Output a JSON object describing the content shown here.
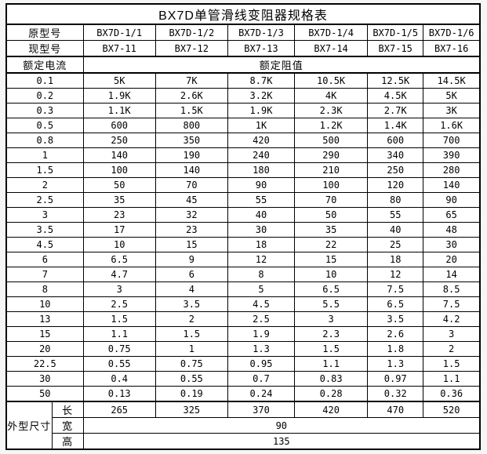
{
  "title": "BX7D单管滑线变阻器规格表",
  "header": {
    "old_model_label": "原型号",
    "new_model_label": "现型号",
    "current_label": "额定电流",
    "resistance_label": "额定阻值",
    "old_models": [
      "BX7D-1/1",
      "BX7D-1/2",
      "BX7D-1/3",
      "BX7D-1/4",
      "BX7D-1/5",
      "BX7D-1/6"
    ],
    "new_models": [
      "BX7-11",
      "BX7-12",
      "BX7-13",
      "BX7-14",
      "BX7-15",
      "BX7-16"
    ]
  },
  "rows": [
    {
      "current": "0.1",
      "values": [
        "5K",
        "7K",
        "8.7K",
        "10.5K",
        "12.5K",
        "14.5K"
      ]
    },
    {
      "current": "0.2",
      "values": [
        "1.9K",
        "2.6K",
        "3.2K",
        "4K",
        "4.5K",
        "5K"
      ]
    },
    {
      "current": "0.3",
      "values": [
        "1.1K",
        "1.5K",
        "1.9K",
        "2.3K",
        "2.7K",
        "3K"
      ]
    },
    {
      "current": "0.5",
      "values": [
        "600",
        "800",
        "1K",
        "1.2K",
        "1.4K",
        "1.6K"
      ]
    },
    {
      "current": "0.8",
      "values": [
        "250",
        "350",
        "420",
        "500",
        "600",
        "700"
      ]
    },
    {
      "current": "1",
      "values": [
        "140",
        "190",
        "240",
        "290",
        "340",
        "390"
      ]
    },
    {
      "current": "1.5",
      "values": [
        "100",
        "140",
        "180",
        "210",
        "250",
        "280"
      ]
    },
    {
      "current": "2",
      "values": [
        "50",
        "70",
        "90",
        "100",
        "120",
        "140"
      ]
    },
    {
      "current": "2.5",
      "values": [
        "35",
        "45",
        "55",
        "70",
        "80",
        "90"
      ]
    },
    {
      "current": "3",
      "values": [
        "23",
        "32",
        "40",
        "50",
        "55",
        "65"
      ]
    },
    {
      "current": "3.5",
      "values": [
        "17",
        "23",
        "30",
        "35",
        "40",
        "48"
      ]
    },
    {
      "current": "4.5",
      "values": [
        "10",
        "15",
        "18",
        "22",
        "25",
        "30"
      ]
    },
    {
      "current": "6",
      "values": [
        "6.5",
        "9",
        "12",
        "15",
        "18",
        "20"
      ]
    },
    {
      "current": "7",
      "values": [
        "4.7",
        "6",
        "8",
        "10",
        "12",
        "14"
      ]
    },
    {
      "current": "8",
      "values": [
        "3",
        "4",
        "5",
        "6.5",
        "7.5",
        "8.5"
      ]
    },
    {
      "current": "10",
      "values": [
        "2.5",
        "3.5",
        "4.5",
        "5.5",
        "6.5",
        "7.5"
      ]
    },
    {
      "current": "13",
      "values": [
        "1.5",
        "2",
        "2.5",
        "3",
        "3.5",
        "4.2"
      ]
    },
    {
      "current": "15",
      "values": [
        "1.1",
        "1.5",
        "1.9",
        "2.3",
        "2.6",
        "3"
      ]
    },
    {
      "current": "20",
      "values": [
        "0.75",
        "1",
        "1.3",
        "1.5",
        "1.8",
        "2"
      ]
    },
    {
      "current": "22.5",
      "values": [
        "0.55",
        "0.75",
        "0.95",
        "1.1",
        "1.3",
        "1.5"
      ]
    },
    {
      "current": "30",
      "values": [
        "0.4",
        "0.55",
        "0.7",
        "0.83",
        "0.97",
        "1.1"
      ]
    },
    {
      "current": "50",
      "values": [
        "0.13",
        "0.19",
        "0.24",
        "0.28",
        "0.32",
        "0.36"
      ]
    }
  ],
  "dimensions": {
    "label": "外型尺寸",
    "length_label": "长",
    "width_label": "宽",
    "height_label": "高",
    "length_values": [
      "265",
      "325",
      "370",
      "420",
      "470",
      "520"
    ],
    "width_value": "90",
    "height_value": "135"
  },
  "colors": {
    "border": "#000000",
    "text": "#000000",
    "cell_background": "#ffffff"
  }
}
